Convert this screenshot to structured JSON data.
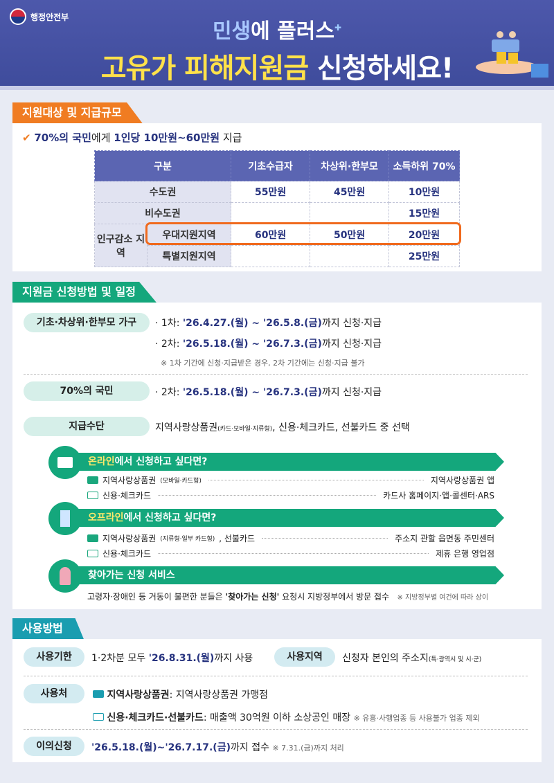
{
  "header": {
    "ministry": "행정안전부",
    "subtitle_highlight": "민생",
    "subtitle_rest": "에 플러스",
    "title_highlight": "고유가 피해지원금",
    "title_rest": " 신청하세요!"
  },
  "section1": {
    "tab": "지원대상 및 지급규모",
    "summary": {
      "a": "70%의 국민",
      "b": "에게 ",
      "c": "1인당 10만원~60만원",
      "d": " 지급"
    },
    "table": {
      "headers": [
        "구분",
        "기초수급자",
        "차상위·한부모",
        "소득하위 70%"
      ],
      "rows": [
        {
          "label": "수도권",
          "values": [
            "55만원",
            "45만원",
            "10만원"
          ]
        },
        {
          "label": "비수도권",
          "values": [
            "",
            "",
            "15만원"
          ]
        },
        {
          "group": "인구감소 지역",
          "label": "우대지원지역",
          "values": [
            "60만원",
            "50만원",
            "20만원"
          ]
        },
        {
          "label": "특별지원지역",
          "values": [
            "",
            "",
            "25만원"
          ]
        }
      ]
    },
    "accent": "#f07c22"
  },
  "section2": {
    "tab": "지원금 신청방법 및 일정",
    "basic": {
      "pill": "기초·차상위·한부모 가구",
      "l1a": "· 1차: ",
      "l1d": "'26.4.27.(월) ~ '26.5.8.(금)",
      "l1b": "까지 신청·지급",
      "l2a": "· 2차: ",
      "l2d": "'26.5.18.(월) ~ '26.7.3.(금)",
      "l2b": "까지 신청·지급",
      "note": "※ 1차 기간에 신청·지급받은 경우, 2차 기간에는 신청·지급 불가"
    },
    "general": {
      "pill": "70%의 국민",
      "a": "· 2차: ",
      "d": "'26.5.18.(월) ~ '26.7.3.(금)",
      "b": "까지 신청·지급"
    },
    "means": {
      "pill": "지급수단",
      "a": "지역사랑상품권",
      "small": "(카드·모바일·지류형)",
      "b": ", 신용·체크카드, 선불카드 중 선택"
    },
    "online": {
      "hl": "온라인",
      "rest": "에서 신청하고 싶다면?",
      "items": [
        {
          "l": "지역사랑상품권",
          "s": "(모바일·카드형)",
          "r": "지역사랑상품권 앱"
        },
        {
          "l": "신용·체크카드",
          "s": "",
          "r": "카드사 홈페이지·앱·콜센터·ARS"
        }
      ]
    },
    "offline": {
      "hl": "오프라인",
      "rest": "에서 신청하고 싶다면?",
      "items": [
        {
          "l": "지역사랑상품권",
          "s": "(지류형·일부 카드형)",
          "l2": ", 선불카드",
          "r": "주소지 관할 읍면동 주민센터"
        },
        {
          "l": "신용·체크카드",
          "s": "",
          "r": "제휴 은행 영업점"
        }
      ]
    },
    "visit": {
      "title": "찾아가는 신청 서비스",
      "a": "고령자·장애인 등 거동이 불편한 분들은 ",
      "b": "'찾아가는 신청'",
      "c": " 요청시 지방정부에서 방문 접수",
      "note": "※ 지방정부별 여건에 따라 상이"
    },
    "accent": "#14a77c"
  },
  "section3": {
    "tab": "사용방법",
    "period": {
      "pill": "사용기한",
      "a": "1·2차분 모두 ",
      "d": "'26.8.31.(월)",
      "b": "까지 사용"
    },
    "region": {
      "pill": "사용지역",
      "a": "신청자 본인의 주소지",
      "s": "(특·광역시 및 시·군)"
    },
    "place": {
      "pill": "사용처",
      "l1b": "지역사랑상품권",
      "l1": ": 지역사랑상품권 가맹점",
      "l2b": "신용·체크카드·선불카드",
      "l2": ": 매출액 30억원 이하 소상공인 매장",
      "note": "※ 유흥·사행업종 등 사용불가 업종 제외"
    },
    "appeal": {
      "pill": "이의신청",
      "d": "'26.5.18.(월)~'26.7.17.(금)",
      "b": "까지 접수",
      "note": "※ 7.31.(금)까지 처리"
    },
    "accent": "#1a9db0"
  }
}
